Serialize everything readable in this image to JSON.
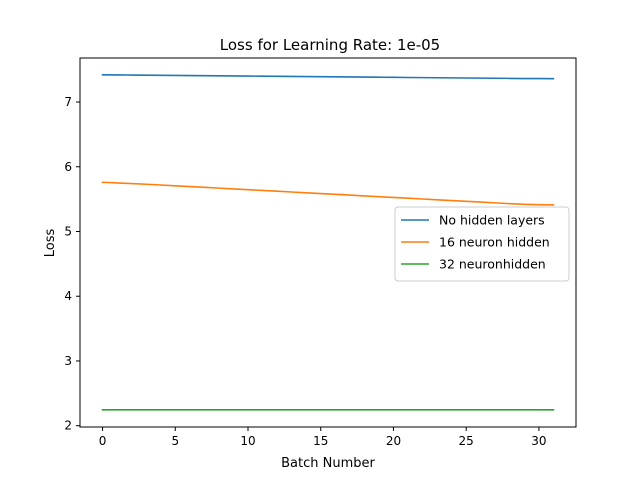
{
  "chart_data": {
    "type": "line",
    "title": "Loss for Learning Rate: 1e-05",
    "xlabel": "Batch Number",
    "ylabel": "Loss",
    "xlim": [
      -1.55,
      32.55
    ],
    "ylim": [
      1.98,
      7.68
    ],
    "xticks": [
      0,
      5,
      10,
      15,
      20,
      25,
      30
    ],
    "xtick_labels": [
      "0",
      "5",
      "10",
      "15",
      "20",
      "25",
      "30"
    ],
    "yticks": [
      2,
      3,
      4,
      5,
      6,
      7
    ],
    "ytick_labels": [
      "2",
      "3",
      "4",
      "5",
      "6",
      "7"
    ],
    "grid": false,
    "legend_position": "center-right",
    "x": [
      0,
      1,
      2,
      3,
      4,
      5,
      6,
      7,
      8,
      9,
      10,
      11,
      12,
      13,
      14,
      15,
      16,
      17,
      18,
      19,
      20,
      21,
      22,
      23,
      24,
      25,
      26,
      27,
      28,
      29,
      30,
      31
    ],
    "series": [
      {
        "name": "No hidden layers",
        "color": "#1f77b4",
        "values": [
          7.42,
          7.419,
          7.417,
          7.415,
          7.413,
          7.411,
          7.409,
          7.407,
          7.405,
          7.403,
          7.401,
          7.399,
          7.397,
          7.395,
          7.393,
          7.391,
          7.389,
          7.387,
          7.385,
          7.383,
          7.381,
          7.379,
          7.377,
          7.375,
          7.373,
          7.371,
          7.369,
          7.367,
          7.365,
          7.363,
          7.362,
          7.36
        ]
      },
      {
        "name": "16 neuron hidden",
        "color": "#ff7f0e",
        "values": [
          5.76,
          5.75,
          5.74,
          5.73,
          5.718,
          5.706,
          5.694,
          5.682,
          5.67,
          5.658,
          5.646,
          5.634,
          5.622,
          5.61,
          5.598,
          5.586,
          5.574,
          5.562,
          5.55,
          5.538,
          5.526,
          5.514,
          5.502,
          5.49,
          5.478,
          5.466,
          5.454,
          5.442,
          5.43,
          5.42,
          5.414,
          5.41
        ]
      },
      {
        "name": "32 neuronhidden",
        "color": "#2ca02c",
        "values": [
          2.245,
          2.245,
          2.245,
          2.245,
          2.245,
          2.245,
          2.245,
          2.245,
          2.245,
          2.245,
          2.245,
          2.245,
          2.245,
          2.245,
          2.245,
          2.245,
          2.245,
          2.245,
          2.245,
          2.245,
          2.245,
          2.245,
          2.245,
          2.245,
          2.245,
          2.245,
          2.245,
          2.245,
          2.245,
          2.245,
          2.245,
          2.245
        ]
      }
    ]
  }
}
